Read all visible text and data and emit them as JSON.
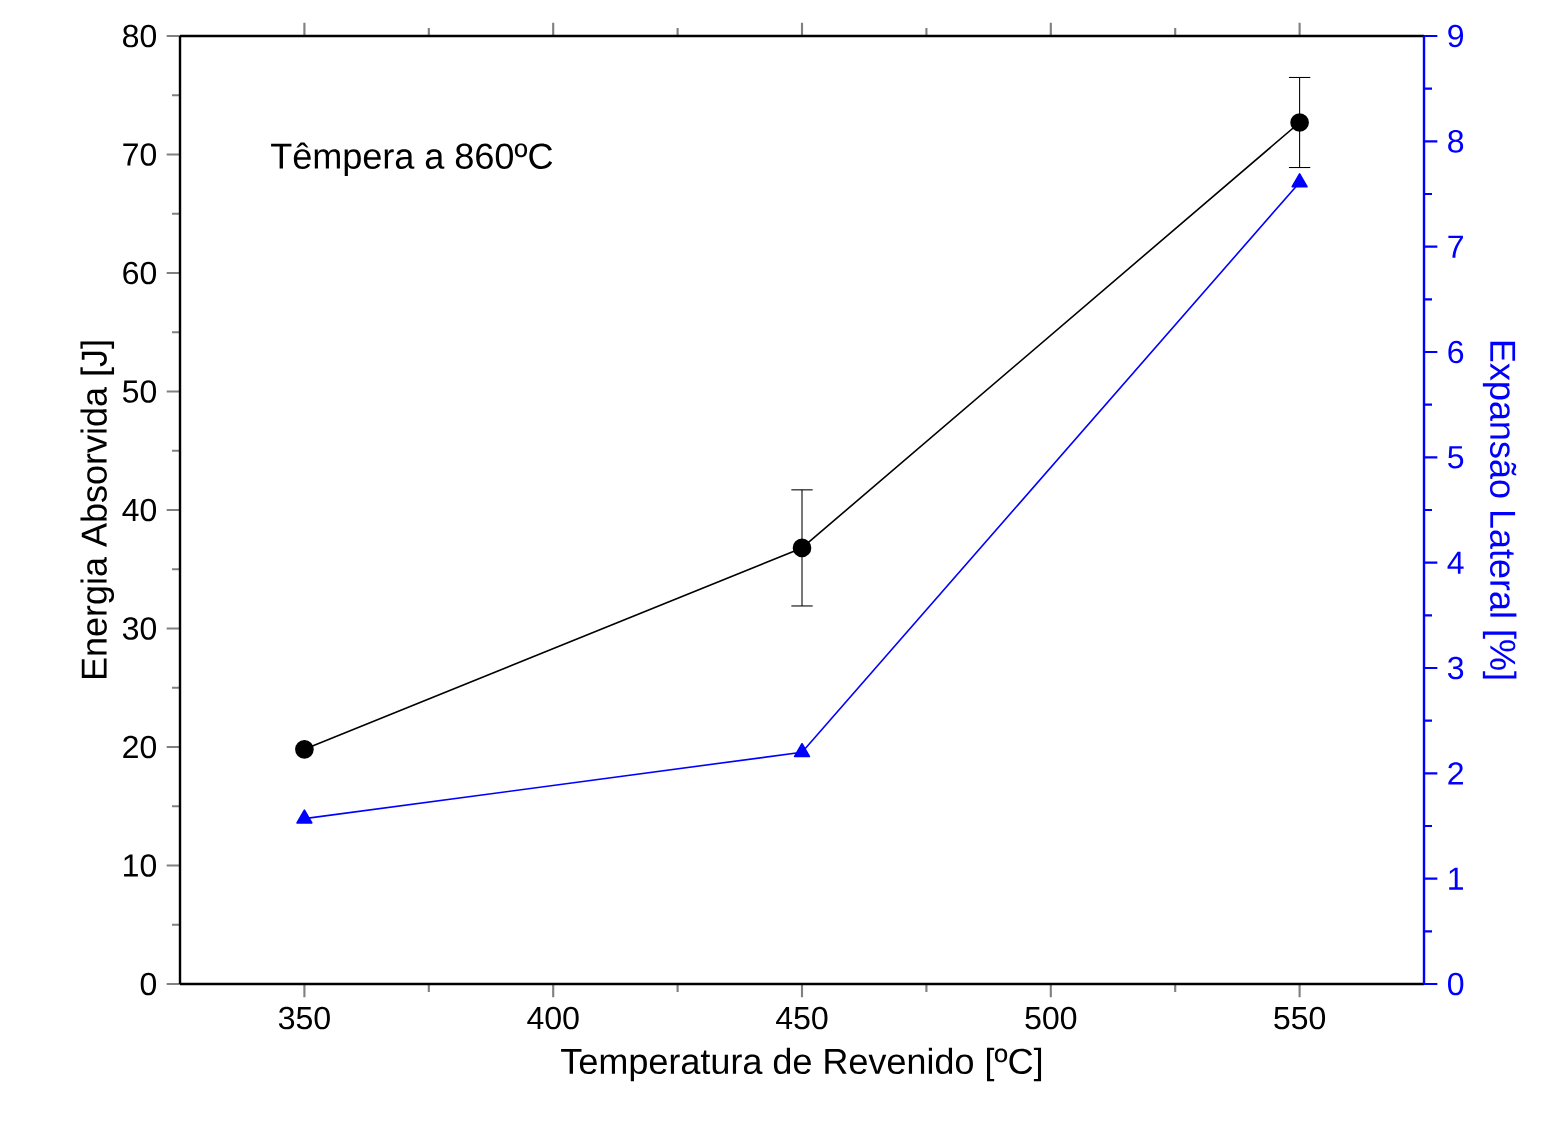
{
  "chart_data": {
    "type": "line",
    "xlabel": "Temperatura de Revenido [ºC]",
    "ylabel": "Energia Absorvida [J]",
    "y2label": "Expansão Lateral [%]",
    "annotations": [
      "Têmpera a 860ºC"
    ],
    "x": [
      350,
      450,
      550
    ],
    "series": [
      {
        "color": "#000000",
        "marker": "circle",
        "values": [
          19.8,
          36.8,
          72.7
        ],
        "errors": [
          null,
          [
            31.9,
            41.7
          ],
          [
            68.9,
            76.5
          ]
        ]
      },
      {
        "color": "#0000ff",
        "marker": "triangle",
        "axis": "y2",
        "values": [
          1.57,
          2.2,
          7.61
        ]
      }
    ],
    "xlim": [
      325,
      575
    ],
    "xticks": [
      350,
      400,
      450,
      500,
      550
    ],
    "ylim": [
      0,
      80
    ],
    "yticks": [
      0,
      10,
      20,
      30,
      40,
      50,
      60,
      70,
      80
    ],
    "y2lim": [
      0,
      9
    ],
    "y2ticks": [
      0,
      1,
      2,
      3,
      4,
      5,
      6,
      7,
      8,
      9
    ]
  }
}
